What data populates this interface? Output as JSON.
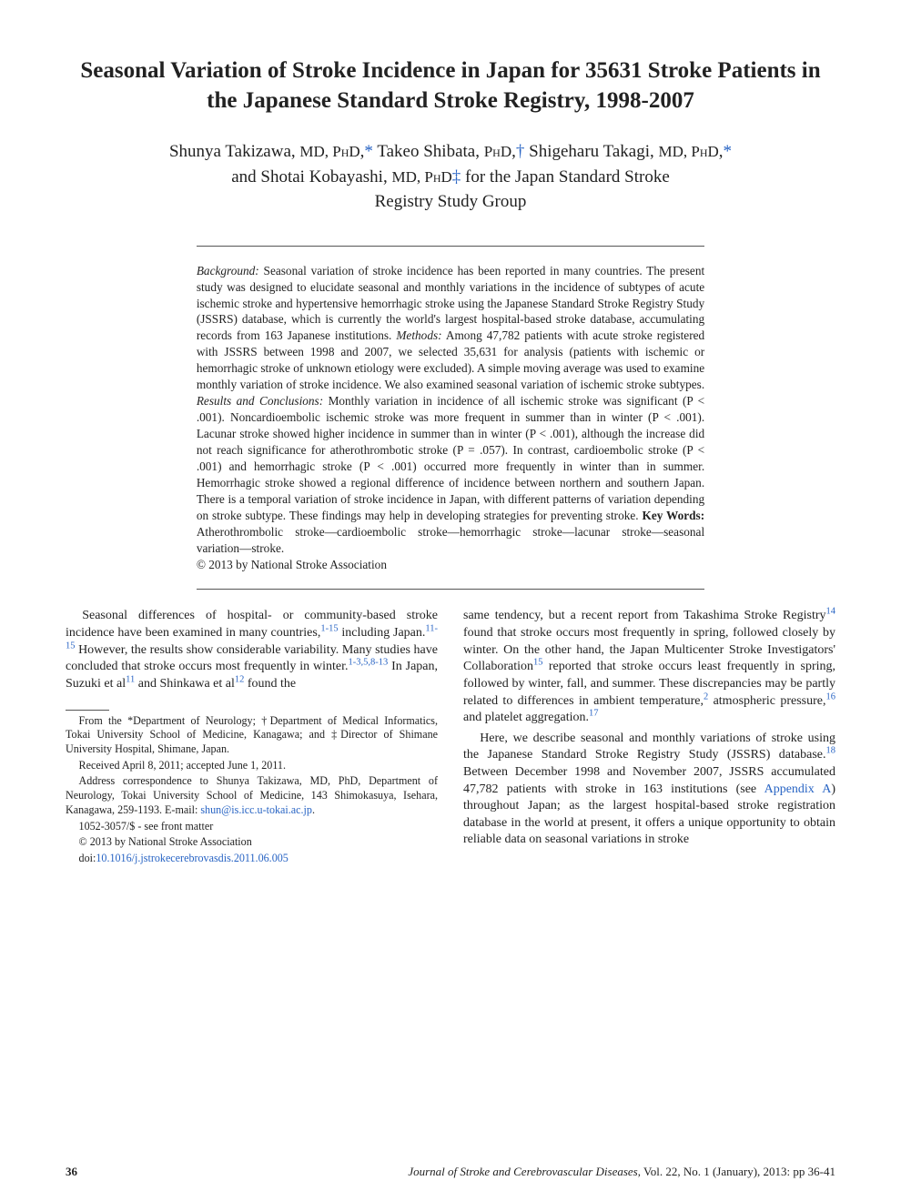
{
  "title": "Seasonal Variation of Stroke Incidence in Japan for 35631 Stroke Patients in the Japanese Standard Stroke Registry, 1998-2007",
  "authors": {
    "line1": "Shunya Takizawa, MD, PhD,* Takeo Shibata, PhD,† Shigeharu Takagi, MD, PhD,*",
    "line2": "and Shotai Kobayashi, MD, PhD‡ for the Japan Standard Stroke",
    "line3": "Registry Study Group"
  },
  "abstract": {
    "background_label": "Background:",
    "background": " Seasonal variation of stroke incidence has been reported in many countries. The present study was designed to elucidate seasonal and monthly variations in the incidence of subtypes of acute ischemic stroke and hypertensive hemorrhagic stroke using the Japanese Standard Stroke Registry Study (JSSRS) database, which is currently the world's largest hospital-based stroke database, accumulating records from 163 Japanese institutions. ",
    "methods_label": "Methods:",
    "methods": " Among 47,782 patients with acute stroke registered with JSSRS between 1998 and 2007, we selected 35,631 for analysis (patients with ischemic or hemorrhagic stroke of unknown etiology were excluded). A simple moving average was used to examine monthly variation of stroke incidence. We also examined seasonal variation of ischemic stroke subtypes. ",
    "results_label": "Results and Conclusions:",
    "results": " Monthly variation in incidence of all ischemic stroke was significant (P < .001). Noncardioembolic ischemic stroke was more frequent in summer than in winter (P < .001). Lacunar stroke showed higher incidence in summer than in winter (P < .001), although the increase did not reach significance for atherothrombotic stroke (P = .057). In contrast, cardioembolic stroke (P < .001) and hemorrhagic stroke (P < .001) occurred more frequently in winter than in summer. Hemorrhagic stroke showed a regional difference of incidence between northern and southern Japan. There is a temporal variation of stroke incidence in Japan, with different patterns of variation depending on stroke subtype. These findings may help in developing strategies for preventing stroke. ",
    "keywords_label": "Key Words:",
    "keywords": " Atherothrombolic stroke—cardioembolic stroke—hemorrhagic stroke—lacunar stroke—seasonal variation—stroke.",
    "copyright": "© 2013 by National Stroke Association"
  },
  "body": {
    "left": {
      "p1": "Seasonal differences of hospital- or community-based stroke incidence have been examined in many countries,",
      "p1_sup1": "1-15",
      "p1b": " including Japan.",
      "p1_sup2": "11-15",
      "p1c": " However, the results show considerable variability. Many studies have concluded that stroke occurs most frequently in winter.",
      "p1_sup3": "1-3,5,8-13",
      "p1d": " In Japan, Suzuki et al",
      "p1_sup4": "11",
      "p1e": " and Shinkawa et al",
      "p1_sup5": "12",
      "p1f": " found the"
    },
    "right": {
      "p1a": "same tendency, but a recent report from Takashima Stroke Registry",
      "p1_sup1": "14",
      "p1b": " found that stroke occurs most frequently in spring, followed closely by winter. On the other hand, the Japan Multicenter Stroke Investigators' Collaboration",
      "p1_sup2": "15",
      "p1c": " reported that stroke occurs least frequently in spring, followed by winter, fall, and summer. These discrepancies may be partly related to differences in ambient temperature,",
      "p1_sup3": "2",
      "p1d": " atmospheric pressure,",
      "p1_sup4": "16",
      "p1e": " and platelet aggregation.",
      "p1_sup5": "17",
      "p2a": "Here, we describe seasonal and monthly variations of stroke using the Japanese Standard Stroke Registry Study (JSSRS) database.",
      "p2_sup1": "18",
      "p2b": " Between December 1998 and November 2007, JSSRS accumulated 47,782 patients with stroke in 163 institutions (see ",
      "p2_link": "Appendix A",
      "p2c": ") throughout Japan; as the largest hospital-based stroke registration database in the world at present, it offers a unique opportunity to obtain reliable data on seasonal variations in stroke"
    }
  },
  "footnotes": {
    "f1": "From the *Department of Neurology; †Department of Medical Informatics, Tokai University School of Medicine, Kanagawa; and ‡Director of Shimane University Hospital, Shimane, Japan.",
    "f2": "Received April 8, 2011; accepted June 1, 2011.",
    "f3a": "Address correspondence to Shunya Takizawa, MD, PhD, Department of Neurology, Tokai University School of Medicine, 143 Shimokasuya, Isehara, Kanagawa, 259-1193. E-mail: ",
    "f3_email": "shun@is.icc.u-tokai.ac.jp",
    "f3b": ".",
    "f4": "1052-3057/$ - see front matter",
    "f5": "© 2013 by National Stroke Association",
    "f6_label": "doi:",
    "f6_doi": "10.1016/j.jstrokecerebrovasdis.2011.06.005"
  },
  "footer": {
    "page": "36",
    "journal": "Journal of Stroke and Cerebrovascular Diseases",
    "issue": ", Vol. 22, No. 1 (January), 2013: pp 36-41"
  },
  "colors": {
    "text": "#222222",
    "link": "#2864c4",
    "rule": "#555555",
    "bg": "#ffffff"
  },
  "fonts": {
    "body_family": "Book Antiqua / Palatino / Georgia serif",
    "title_size_pt": 19,
    "author_size_pt": 14,
    "abstract_size_pt": 10,
    "body_size_pt": 10.5,
    "footnote_size_pt": 9
  }
}
